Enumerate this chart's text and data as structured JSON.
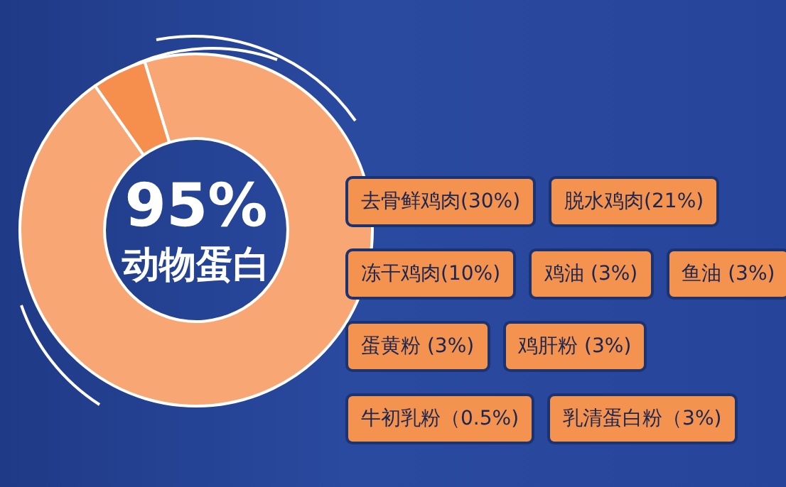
{
  "chart_data": {
    "type": "donut",
    "categories": [
      "动物蛋白",
      null
    ],
    "values": [
      95,
      5
    ],
    "colors": [
      "#f8a673",
      "#f68f4e"
    ],
    "value_labels": [
      "95%",
      null
    ],
    "legend": false,
    "annotations": [
      "去骨鲜鸡肉(30%)",
      "脱水鸡肉(21%)",
      "冻干鸡肉(10%)",
      "鸡油 (3%)",
      "鱼油 (3%)",
      "蛋黄粉 (3%)",
      "鸡肝粉 (3%)",
      "牛初乳粉（0.5%)",
      "乳清蛋白粉（3%)"
    ]
  }
}
